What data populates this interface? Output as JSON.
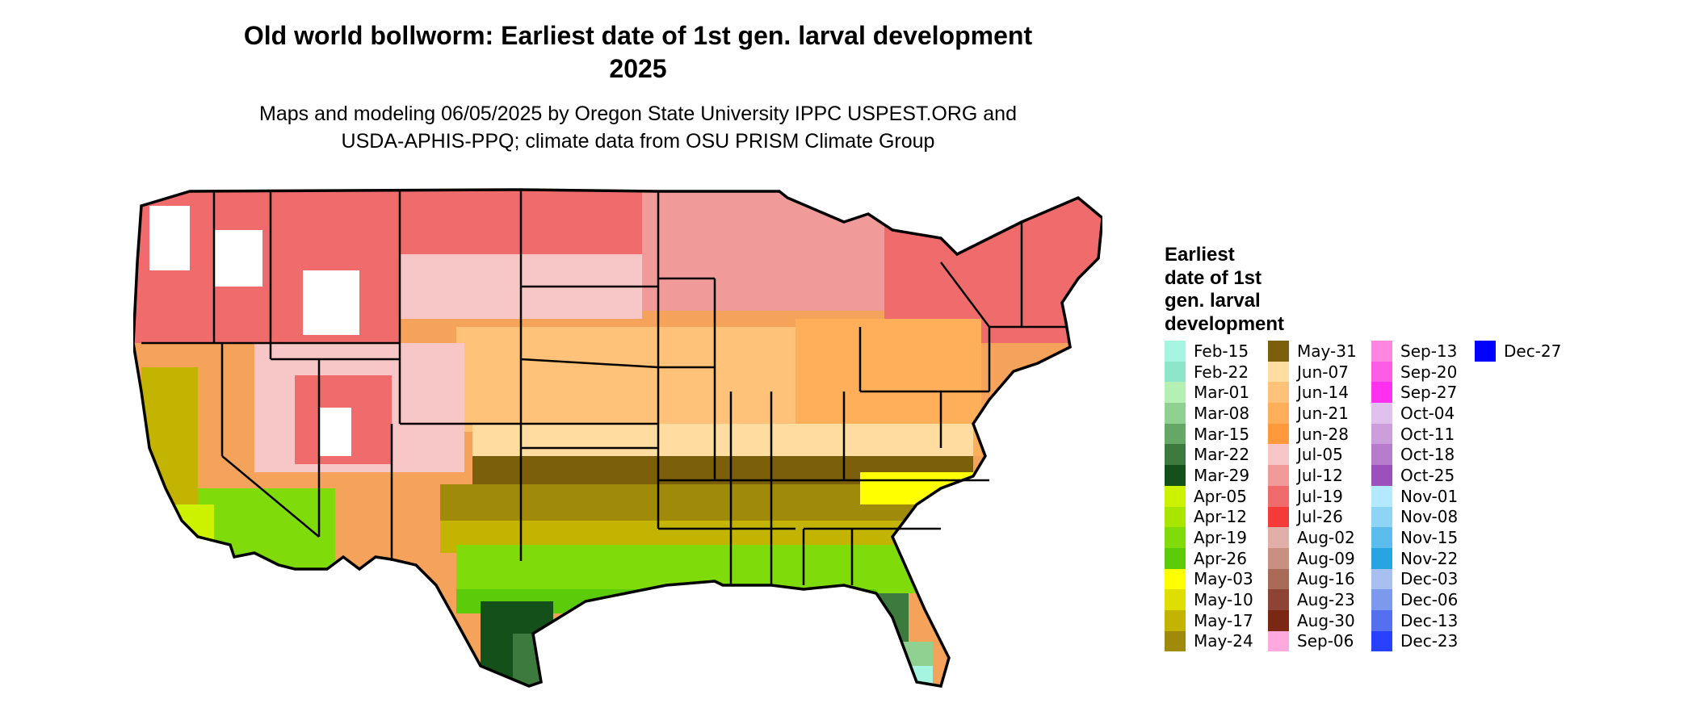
{
  "title_line1": "Old world bollworm: Earliest date of 1st gen. larval development",
  "title_line2": "2025",
  "subtitle_line1": "Maps and modeling 06/05/2025 by Oregon State University IPPC USPEST.ORG and",
  "subtitle_line2": "USDA-APHIS-PPQ; climate data from OSU PRISM Climate Group",
  "legend": {
    "title_lines": [
      "Earliest",
      "date of 1st",
      "gen. larval",
      "development"
    ],
    "columns": [
      [
        {
          "label": "Feb-15",
          "color": "#a6f5e0"
        },
        {
          "label": "Feb-22",
          "color": "#8de6c9"
        },
        {
          "label": "Mar-01",
          "color": "#b4f0b4"
        },
        {
          "label": "Mar-08",
          "color": "#90d090"
        },
        {
          "label": "Mar-15",
          "color": "#65a865"
        },
        {
          "label": "Mar-22",
          "color": "#3d7a3d"
        },
        {
          "label": "Mar-29",
          "color": "#14501a"
        },
        {
          "label": "Apr-05",
          "color": "#ccf200"
        },
        {
          "label": "Apr-12",
          "color": "#a8e600"
        },
        {
          "label": "Apr-19",
          "color": "#7fdb0a"
        },
        {
          "label": "Apr-26",
          "color": "#5ccc0a"
        },
        {
          "label": "May-03",
          "color": "#ffff00"
        },
        {
          "label": "May-10",
          "color": "#dede00"
        },
        {
          "label": "May-17",
          "color": "#c2b400"
        },
        {
          "label": "May-24",
          "color": "#a08a0a"
        }
      ],
      [
        {
          "label": "May-31",
          "color": "#7c5f0a"
        },
        {
          "label": "Jun-07",
          "color": "#ffdca0"
        },
        {
          "label": "Jun-14",
          "color": "#ffc278"
        },
        {
          "label": "Jun-21",
          "color": "#ffae5a"
        },
        {
          "label": "Jun-28",
          "color": "#ff9a3c"
        },
        {
          "label": "Jul-05",
          "color": "#f7c6c6"
        },
        {
          "label": "Jul-12",
          "color": "#f09a9a"
        },
        {
          "label": "Jul-19",
          "color": "#f06c6c"
        },
        {
          "label": "Jul-26",
          "color": "#f53a3a"
        },
        {
          "label": "Aug-02",
          "color": "#e0b0a8"
        },
        {
          "label": "Aug-09",
          "color": "#c89080"
        },
        {
          "label": "Aug-16",
          "color": "#aa6a58"
        },
        {
          "label": "Aug-23",
          "color": "#8e4434"
        },
        {
          "label": "Aug-30",
          "color": "#7a2814"
        },
        {
          "label": "Sep-06",
          "color": "#ffaade"
        }
      ],
      [
        {
          "label": "Sep-13",
          "color": "#ff86e0"
        },
        {
          "label": "Sep-20",
          "color": "#ff5ce6"
        },
        {
          "label": "Sep-27",
          "color": "#ff30ee"
        },
        {
          "label": "Oct-04",
          "color": "#e0c0ec"
        },
        {
          "label": "Oct-11",
          "color": "#cc9edc"
        },
        {
          "label": "Oct-18",
          "color": "#b87ccc"
        },
        {
          "label": "Oct-25",
          "color": "#9c50bc"
        },
        {
          "label": "Nov-01",
          "color": "#b4eaff"
        },
        {
          "label": "Nov-08",
          "color": "#8ed4f4"
        },
        {
          "label": "Nov-15",
          "color": "#5cbcec"
        },
        {
          "label": "Nov-22",
          "color": "#28a4e0"
        },
        {
          "label": "Dec-03",
          "color": "#a8c0f0"
        },
        {
          "label": "Dec-06",
          "color": "#7c9aec"
        },
        {
          "label": "Dec-13",
          "color": "#5470f0"
        },
        {
          "label": "Dec-23",
          "color": "#2840ff"
        }
      ],
      [
        {
          "label": "Dec-27",
          "color": "#0000ff"
        }
      ]
    ]
  }
}
